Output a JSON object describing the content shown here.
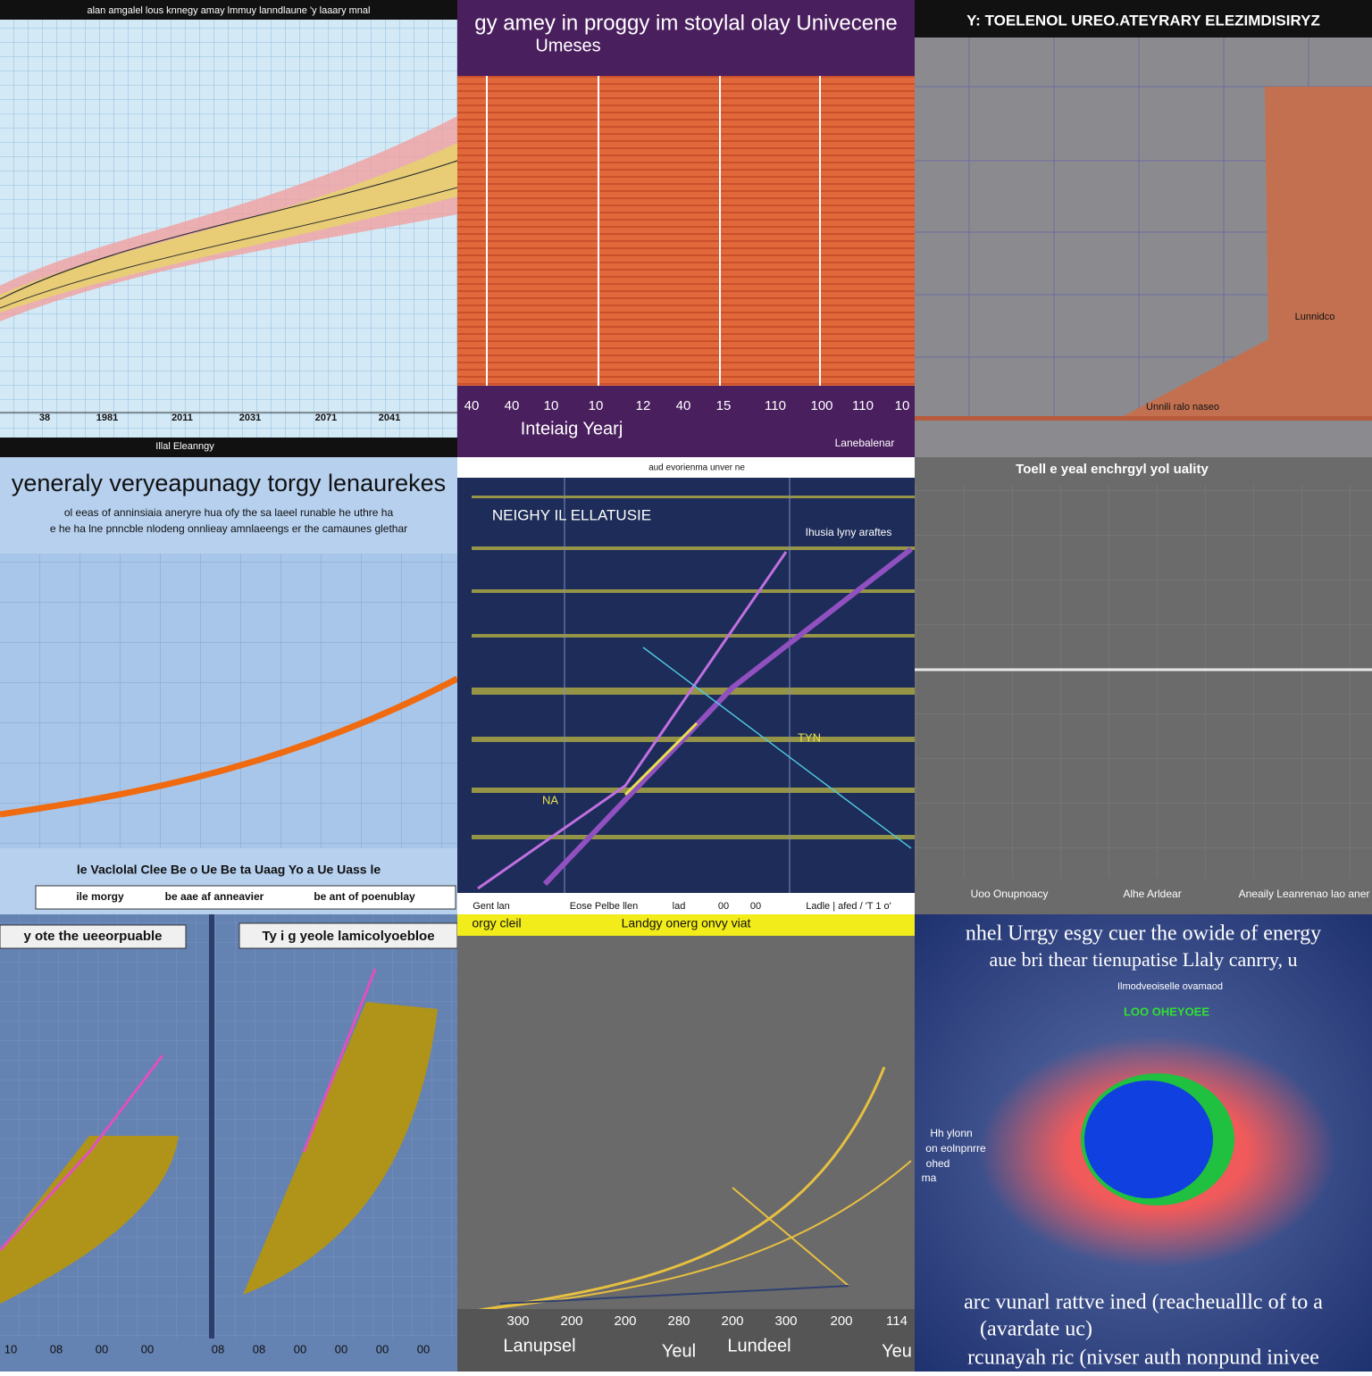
{
  "panels": [
    {
      "title": "alan amgalel lous knnegy amay lmmuy lanndlaune 'y laaary mnal",
      "tick_labels": [
        "38",
        "1981",
        "2011",
        "2031",
        "2071",
        "2041"
      ],
      "footer": "Illal Eleanngy"
    },
    {
      "title": "gy amey in proggy im stoylal olay Univecene",
      "subtitle": "Umeses",
      "tick_labels": [
        "40",
        "40",
        "10",
        "10",
        "12",
        "40",
        "15",
        "110",
        "100",
        "110",
        "10"
      ],
      "axis_label": "Inteiaig Yearj",
      "footer": "Lanebalenar"
    },
    {
      "title": "Y: TOELENOL UREO.ATEYRARY ELEZIMDISIRYZ",
      "annotations": [
        "Lunnidco",
        "Unnili ralo naseo"
      ]
    },
    {
      "title": "yeneraly veryeapunagy torgy lenaurekes",
      "subtitle_lines": [
        "ol eeas of anninsiaia aneryre hua ofy the sa laeel runable he uthre ha",
        "e he ha lne pnncble nlodeng onnlieay amnlaeengs er the camaunes glethar"
      ],
      "tick_row": "le Vaclolal Clee Be o Ue Be ta Uaag Yo a Ue Uass le",
      "legend": [
        "ile morgy",
        "be aae af anneavier",
        "be ant of poenublay"
      ]
    },
    {
      "title": "aud evorienma unver ne",
      "inner_title": "NEIGHY IL ELLATUSIE",
      "annotations": [
        "Ihusia lyny araftes",
        "TYN",
        "NA"
      ],
      "tick_labels": [
        "Gent lan",
        "Eose Pelbe llen",
        "lad",
        "00",
        "00",
        "Ladle | afed / 'T 1 o'"
      ]
    },
    {
      "title": "Toell e yeal enchrgyl yol uality",
      "x_labels": [
        "Uoo Onupnoacy",
        "Alhe Arldear",
        "Aneaily Leanrenao lao aner"
      ]
    },
    {
      "panel_titles": [
        "y ote the ueeorpuable",
        "Ty i g yeole lamicolyoebloe"
      ],
      "tick_labels": [
        "10",
        "08",
        "00",
        "00",
        "08",
        "08",
        "00",
        "00",
        "00",
        "00"
      ]
    },
    {
      "header": [
        "orgy cleil",
        "Landgy onerg onvy viat"
      ],
      "tick_labels": [
        "300",
        "200",
        "200",
        "280",
        "200",
        "300",
        "200",
        "114"
      ],
      "axis_labels": [
        "Lanupsel",
        "Yeul",
        "Lundeel",
        "Yeu"
      ]
    },
    {
      "title_lines": [
        "nhel Urrgy esgy cuer the owide of energy",
        "aue bri thear tienupatise Llaly canrry, u"
      ],
      "subtitle": "Ilmodveoiselle ovamaod",
      "highlight": "LOO OHEYOEE",
      "side": [
        "Hh ylonn",
        "on eolnpnrre",
        "ohed",
        "ma"
      ],
      "footer_lines": [
        "arc vunarl rattve ined (reacheualllc of to a",
        "(avardate uc)",
        "rcunayah ric (nivser auth nonpund inivee"
      ]
    }
  ]
}
